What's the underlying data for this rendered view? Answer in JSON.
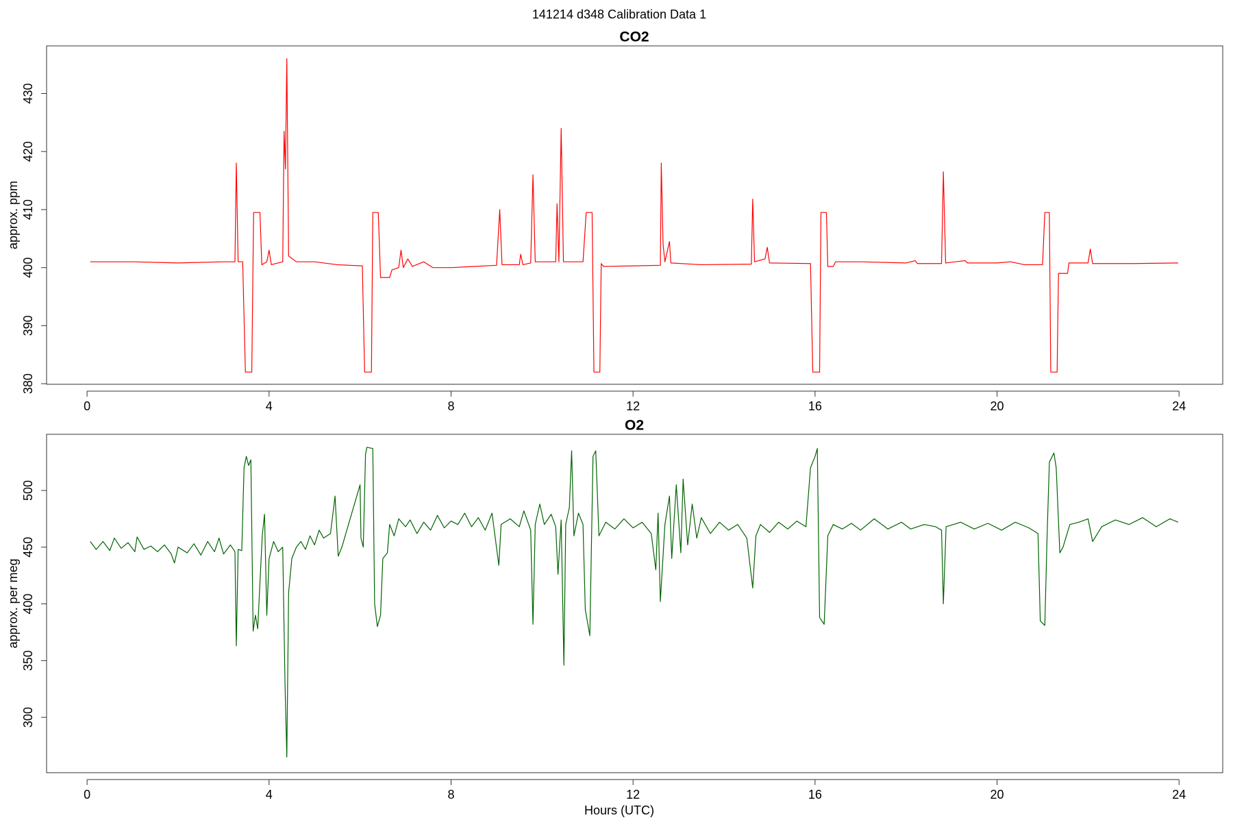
{
  "title": "141214   d348   Calibration Data 1",
  "chart_data": [
    {
      "type": "line",
      "title": "CO2",
      "ylabel": "approx. ppm",
      "color": "#ff0000",
      "xlim": [
        -0.89,
        24.96
      ],
      "xticks": [
        0,
        4,
        8,
        12,
        16,
        20,
        24
      ],
      "ylim": [
        379.9,
        438.2
      ],
      "yticks": [
        380,
        390,
        400,
        410,
        420,
        430
      ],
      "x": [
        0.07,
        1.0,
        2.0,
        3.0,
        3.25,
        3.28,
        3.32,
        3.42,
        3.48,
        3.62,
        3.66,
        3.8,
        3.84,
        3.95,
        4.0,
        4.05,
        4.3,
        4.33,
        4.36,
        4.39,
        4.43,
        4.6,
        5.0,
        5.5,
        6.05,
        6.1,
        6.25,
        6.28,
        6.4,
        6.45,
        6.65,
        6.7,
        6.85,
        6.9,
        6.95,
        7.05,
        7.15,
        7.4,
        7.6,
        8.0,
        8.5,
        9.0,
        9.07,
        9.12,
        9.5,
        9.53,
        9.58,
        9.75,
        9.8,
        9.85,
        10.3,
        10.33,
        10.37,
        10.42,
        10.47,
        10.9,
        10.97,
        11.1,
        11.14,
        11.27,
        11.3,
        11.35,
        12.0,
        12.6,
        12.62,
        12.66,
        12.7,
        12.8,
        12.83,
        13.5,
        14.6,
        14.63,
        14.67,
        14.9,
        14.95,
        15.0,
        15.9,
        15.95,
        16.1,
        16.13,
        16.25,
        16.28,
        16.4,
        16.45,
        17.0,
        18.0,
        18.2,
        18.25,
        18.78,
        18.82,
        18.87,
        19.3,
        19.35,
        20.0,
        20.3,
        20.6,
        21.0,
        21.05,
        21.15,
        21.18,
        21.32,
        21.35,
        21.55,
        21.58,
        22.0,
        22.05,
        22.1,
        23.0,
        23.98
      ],
      "values": [
        401,
        401,
        400.8,
        401,
        401,
        418,
        401,
        401,
        382,
        382,
        409.5,
        409.5,
        400.5,
        401,
        403,
        400.5,
        401,
        423.5,
        417,
        436,
        402,
        401,
        401,
        400.5,
        400.3,
        382,
        382,
        409.5,
        409.5,
        398.3,
        398.3,
        399.6,
        400,
        403,
        400,
        401.5,
        400.2,
        401,
        400,
        400,
        400.2,
        400.4,
        410,
        400.5,
        400.5,
        402.3,
        400.5,
        400.8,
        416,
        401,
        401,
        411,
        401,
        424,
        401,
        401,
        409.5,
        409.5,
        382,
        382,
        400.7,
        400.2,
        400.3,
        400.4,
        418,
        404,
        401,
        404.5,
        400.8,
        400.5,
        400.6,
        411.8,
        401,
        401.5,
        403.5,
        400.8,
        400.7,
        382,
        382,
        409.5,
        409.5,
        400.2,
        400.2,
        401,
        401,
        400.8,
        401.2,
        400.7,
        400.7,
        416.5,
        400.8,
        401.2,
        400.8,
        400.8,
        401,
        400.5,
        400.5,
        409.5,
        409.5,
        382,
        382,
        399,
        399,
        400.8,
        400.8,
        403.2,
        400.7,
        400.7,
        400.8
      ]
    },
    {
      "type": "line",
      "title": "O2",
      "ylabel": "approx. per meg",
      "xlabel": "Hours (UTC)",
      "color": "#006400",
      "xlim": [
        -0.89,
        24.96
      ],
      "xticks": [
        0,
        4,
        8,
        12,
        16,
        20,
        24
      ],
      "ylim": [
        251.2,
        549.5
      ],
      "yticks": [
        300,
        350,
        400,
        450,
        500
      ],
      "x": [
        0.07,
        0.2,
        0.35,
        0.5,
        0.6,
        0.75,
        0.9,
        1.05,
        1.1,
        1.25,
        1.4,
        1.55,
        1.7,
        1.85,
        1.92,
        2.0,
        2.2,
        2.35,
        2.5,
        2.65,
        2.8,
        2.9,
        3.0,
        3.15,
        3.25,
        3.28,
        3.32,
        3.4,
        3.45,
        3.5,
        3.55,
        3.6,
        3.65,
        3.7,
        3.75,
        3.85,
        3.9,
        3.95,
        4.0,
        4.1,
        4.2,
        4.3,
        4.35,
        4.39,
        4.43,
        4.5,
        4.6,
        4.7,
        4.8,
        4.9,
        5.0,
        5.1,
        5.2,
        5.35,
        5.45,
        5.52,
        5.6,
        6.0,
        6.02,
        6.07,
        6.12,
        6.15,
        6.28,
        6.32,
        6.38,
        6.45,
        6.5,
        6.6,
        6.65,
        6.75,
        6.85,
        7.0,
        7.1,
        7.25,
        7.4,
        7.55,
        7.7,
        7.85,
        8.0,
        8.15,
        8.3,
        8.45,
        8.6,
        8.75,
        8.9,
        9.05,
        9.1,
        9.3,
        9.5,
        9.6,
        9.75,
        9.8,
        9.85,
        9.95,
        10.05,
        10.2,
        10.3,
        10.35,
        10.42,
        10.48,
        10.52,
        10.6,
        10.65,
        10.7,
        10.8,
        10.9,
        10.95,
        11.05,
        11.12,
        11.18,
        11.25,
        11.4,
        11.6,
        11.8,
        12.0,
        12.2,
        12.4,
        12.5,
        12.55,
        12.6,
        12.7,
        12.8,
        12.85,
        12.95,
        13.05,
        13.1,
        13.2,
        13.3,
        13.4,
        13.5,
        13.7,
        13.9,
        14.1,
        14.3,
        14.5,
        14.63,
        14.7,
        14.8,
        15.0,
        15.2,
        15.4,
        15.6,
        15.8,
        15.9,
        16.0,
        16.05,
        16.1,
        16.2,
        16.28,
        16.4,
        16.6,
        16.8,
        17.0,
        17.3,
        17.6,
        17.9,
        18.1,
        18.4,
        18.65,
        18.78,
        18.82,
        18.88,
        19.2,
        19.5,
        19.8,
        20.1,
        20.4,
        20.7,
        20.9,
        20.95,
        21.05,
        21.1,
        21.15,
        21.25,
        21.3,
        21.38,
        21.45,
        21.6,
        21.8,
        22.0,
        22.1,
        22.3,
        22.6,
        22.9,
        23.2,
        23.5,
        23.8,
        23.98
      ],
      "values": [
        455,
        448,
        455,
        447,
        458,
        449,
        454,
        446,
        459,
        448,
        451,
        446,
        452,
        444,
        436,
        450,
        445,
        453,
        443,
        455,
        446,
        458,
        444,
        452,
        446,
        363,
        448,
        447,
        520,
        530,
        522,
        527,
        376,
        390,
        378,
        460,
        479,
        390,
        440,
        455,
        446,
        450,
        330,
        265,
        410,
        440,
        450,
        455,
        448,
        460,
        452,
        465,
        458,
        462,
        495,
        442,
        450,
        505,
        458,
        450,
        532,
        538,
        537,
        400,
        380,
        390,
        440,
        445,
        470,
        460,
        475,
        468,
        474,
        462,
        472,
        465,
        478,
        467,
        473,
        470,
        480,
        468,
        476,
        465,
        480,
        434,
        470,
        475,
        468,
        482,
        465,
        382,
        470,
        488,
        470,
        479,
        468,
        426,
        474,
        346,
        470,
        485,
        535,
        460,
        480,
        470,
        395,
        372,
        530,
        535,
        460,
        472,
        466,
        475,
        467,
        472,
        462,
        430,
        480,
        402,
        470,
        495,
        440,
        505,
        445,
        510,
        452,
        488,
        458,
        476,
        462,
        472,
        465,
        470,
        458,
        414,
        460,
        470,
        463,
        472,
        466,
        473,
        468,
        520,
        530,
        537,
        388,
        382,
        460,
        470,
        466,
        471,
        465,
        475,
        466,
        472,
        466,
        470,
        468,
        465,
        400,
        468,
        472,
        466,
        471,
        465,
        472,
        467,
        462,
        385,
        381,
        460,
        525,
        533,
        520,
        445,
        450,
        470,
        472,
        475,
        455,
        468,
        474,
        470,
        476,
        468,
        475,
        472
      ]
    }
  ]
}
